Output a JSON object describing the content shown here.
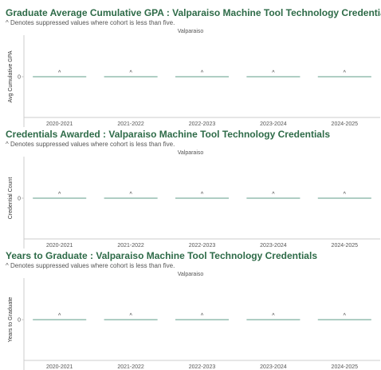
{
  "note": "^ Denotes suppressed values where cohort is less than five.",
  "facet": "Valparaiso",
  "categories": [
    "2020-2021",
    "2021-2022",
    "2022-2023",
    "2023-2024",
    "2024-2025"
  ],
  "colors": {
    "title": "#2e6b48",
    "bar_line": "#7fb0a0",
    "axis": "#cccccc",
    "text": "#555555"
  },
  "chart_data": [
    {
      "type": "bar",
      "title": "Graduate Average Cumulative GPA : Valparaiso Machine Tool Technology Credentials",
      "subtitle": "^ Denotes suppressed values where cohort is less than five.",
      "facet": "Valparaiso",
      "ylabel": "Avg Cumulative GPA",
      "xlabel": "",
      "categories": [
        "2020-2021",
        "2021-2022",
        "2022-2023",
        "2023-2024",
        "2024-2025"
      ],
      "values": [
        0,
        0,
        0,
        0,
        0
      ],
      "data_labels": [
        "^",
        "^",
        "^",
        "^",
        "^"
      ],
      "yticks": [
        0
      ],
      "grid": false
    },
    {
      "type": "bar",
      "title": "Credentials Awarded : Valparaiso Machine Tool Technology Credentials",
      "subtitle": "^ Denotes suppressed values where cohort is less than five.",
      "facet": "Valparaiso",
      "ylabel": "Credential Count",
      "xlabel": "",
      "categories": [
        "2020-2021",
        "2021-2022",
        "2022-2023",
        "2023-2024",
        "2024-2025"
      ],
      "values": [
        0,
        0,
        0,
        0,
        0
      ],
      "data_labels": [
        "^",
        "^",
        "^",
        "^",
        "^"
      ],
      "yticks": [
        0
      ],
      "grid": false
    },
    {
      "type": "bar",
      "title": "Years to Graduate : Valparaiso Machine Tool Technology Credentials",
      "subtitle": "^ Denotes suppressed values where cohort is less than five.",
      "facet": "Valparaiso",
      "ylabel": "Years to Graduate",
      "xlabel": "",
      "categories": [
        "2020-2021",
        "2021-2022",
        "2022-2023",
        "2023-2024",
        "2024-2025"
      ],
      "values": [
        0,
        0,
        0,
        0,
        0
      ],
      "data_labels": [
        "^",
        "^",
        "^",
        "^",
        "^"
      ],
      "yticks": [
        0
      ],
      "grid": false
    }
  ]
}
